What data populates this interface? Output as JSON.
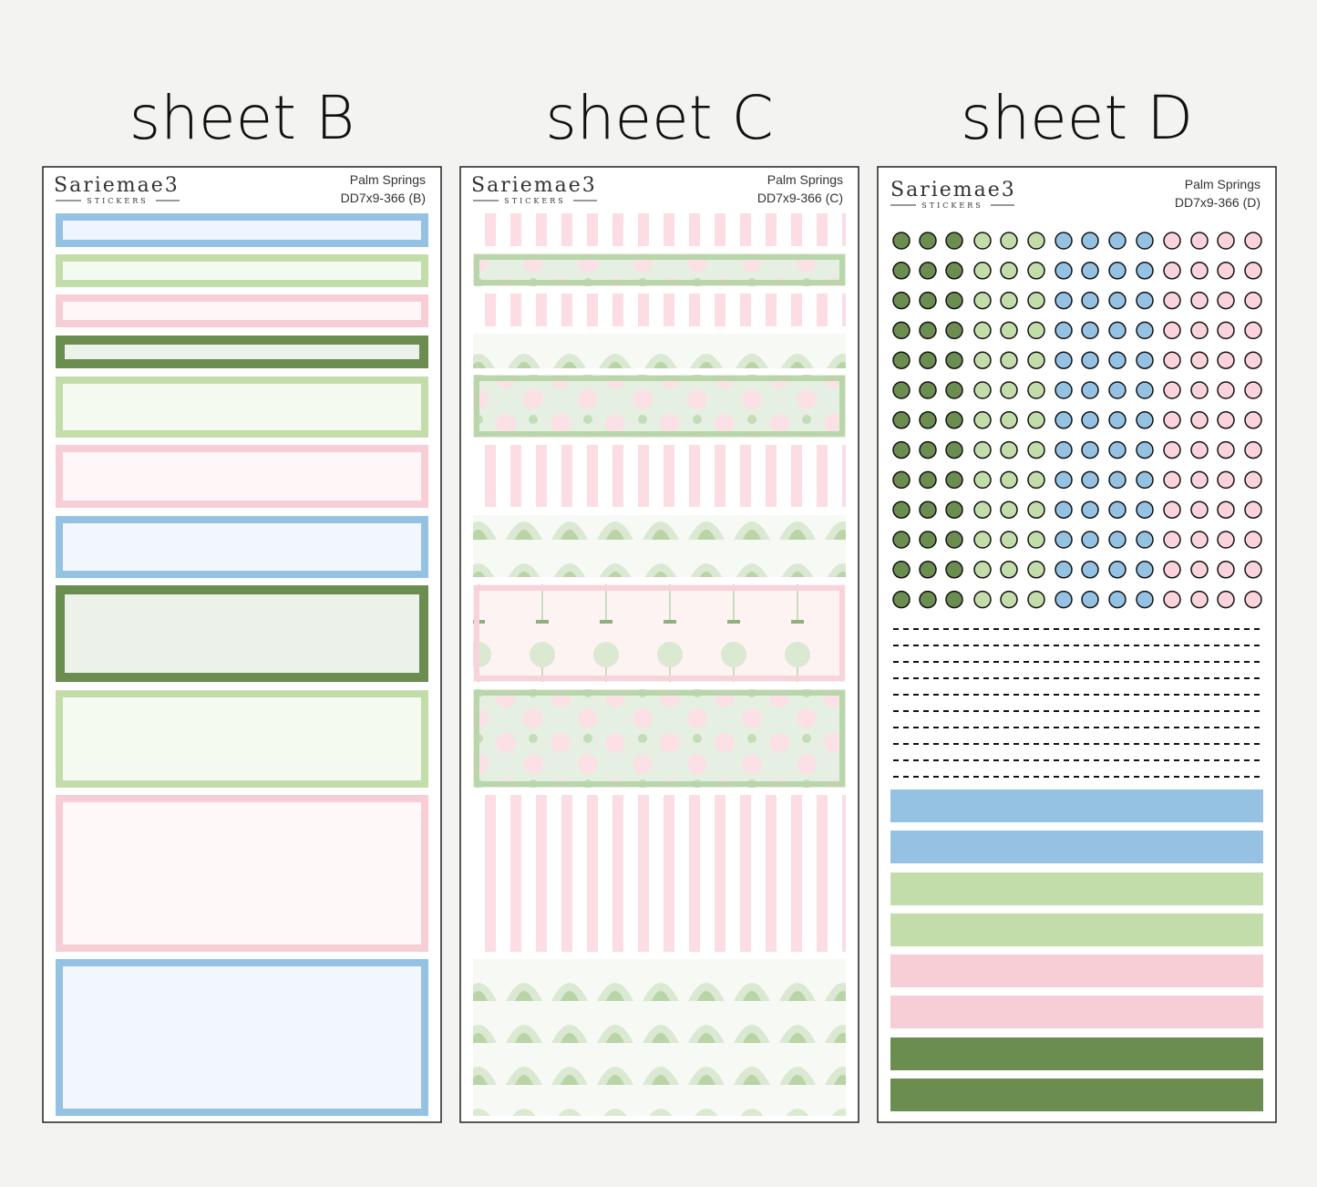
{
  "sheets": [
    {
      "title": "sheet B",
      "brand": "Sariemae3",
      "brand_sub": "STICKERS",
      "name": "Palm Springs",
      "code": "DD7x9-366 (B)"
    },
    {
      "title": "sheet C",
      "brand": "Sariemae3",
      "brand_sub": "STICKERS",
      "name": "Palm Springs",
      "code": "DD7x9-366 (C)"
    },
    {
      "title": "sheet D",
      "brand": "Sariemae3",
      "brand_sub": "STICKERS",
      "name": "Palm Springs",
      "code": "DD7x9-366 (D)"
    }
  ]
}
